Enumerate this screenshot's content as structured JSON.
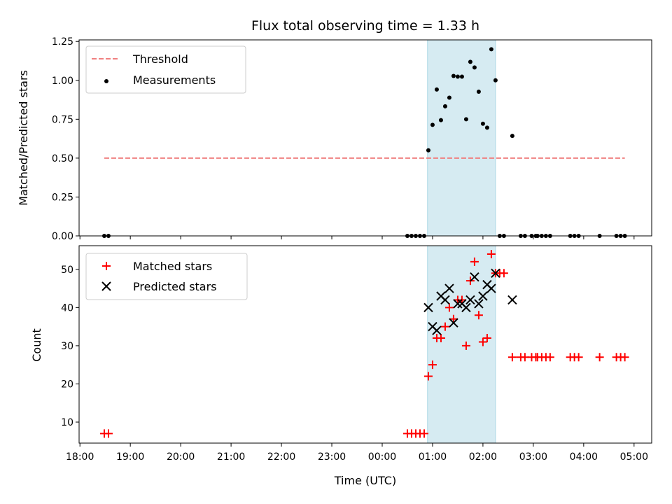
{
  "chart_data": {
    "type": "scatter",
    "title": "Flux total observing time = 1.33 h",
    "xlabel": "Time (UTC)",
    "x_ticks": [
      "18:00",
      "19:00",
      "20:00",
      "21:00",
      "22:00",
      "23:00",
      "00:00",
      "01:00",
      "02:00",
      "03:00",
      "04:00",
      "05:00"
    ],
    "xlim_minutes_after_1800": [
      -1,
      681
    ],
    "shaded_window": {
      "start": "00:54",
      "end": "02:15",
      "color": "#add8e6"
    },
    "top_panel": {
      "ylabel": "Matched/Predicted stars",
      "ylim": [
        0,
        1.26
      ],
      "y_ticks": [
        "0.00",
        "0.25",
        "0.50",
        "0.75",
        "1.00",
        "1.25"
      ],
      "threshold": {
        "value": 0.5,
        "from": "18:29",
        "to": "04:49",
        "color": "#f08080"
      },
      "legend": {
        "placement": "top-left",
        "entries": [
          "Threshold",
          "Measurements"
        ]
      }
    },
    "bottom_panel": {
      "ylabel": "Count",
      "ylim": [
        4.5,
        56.2
      ],
      "y_ticks": [
        "10",
        "20",
        "30",
        "40",
        "50"
      ],
      "legend": {
        "placement": "top-left",
        "entries": [
          "Matched stars",
          "Predicted stars"
        ]
      }
    },
    "x": [
      "18:29",
      "18:34",
      "00:30",
      "00:35",
      "00:40",
      "00:45",
      "00:50",
      "00:55",
      "01:00",
      "01:05",
      "01:10",
      "01:15",
      "01:20",
      "01:25",
      "01:30",
      "01:35",
      "01:40",
      "01:45",
      "01:50",
      "01:55",
      "02:00",
      "02:05",
      "02:10",
      "02:15",
      "02:20",
      "02:25",
      "02:35",
      "02:45",
      "02:50",
      "02:58",
      "03:03",
      "03:05",
      "03:10",
      "03:15",
      "03:20",
      "03:44",
      "03:49",
      "03:54",
      "04:19",
      "04:39",
      "04:44",
      "04:49"
    ],
    "series": [
      {
        "name": "Matched stars",
        "color": "#ff0000",
        "values": [
          7,
          7,
          7,
          7,
          7,
          7,
          7,
          22,
          25,
          32,
          32,
          35,
          40,
          37,
          42,
          42,
          30,
          47,
          52,
          38,
          31,
          32,
          54,
          49,
          49,
          49,
          27,
          27,
          27,
          27,
          27,
          27,
          27,
          27,
          27,
          27,
          27,
          27,
          27,
          27,
          27,
          27
        ]
      },
      {
        "name": "Predicted stars",
        "color": "#000000",
        "values": [
          null,
          null,
          null,
          null,
          null,
          null,
          null,
          40,
          35,
          34,
          43,
          42,
          45,
          36,
          41,
          41,
          40,
          42,
          48,
          41,
          43,
          46,
          45,
          49,
          null,
          null,
          42,
          null,
          null,
          null,
          null,
          null,
          null,
          null,
          null,
          null,
          null,
          null,
          null,
          null,
          null,
          null
        ]
      },
      {
        "name": "Measurements",
        "color": "#000000",
        "values": [
          0,
          0,
          0,
          0,
          0,
          0,
          0,
          0.55,
          0.714,
          0.941,
          0.744,
          0.833,
          0.889,
          1.028,
          1.024,
          1.024,
          0.75,
          1.119,
          1.083,
          0.927,
          0.721,
          0.696,
          1.2,
          1.0,
          0,
          0,
          0.643,
          0,
          0,
          0,
          0,
          0,
          0,
          0,
          0,
          0,
          0,
          0,
          0,
          0,
          0,
          0
        ]
      }
    ]
  }
}
